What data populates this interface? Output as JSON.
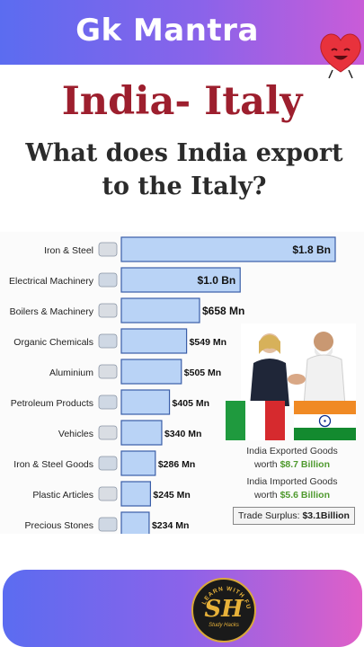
{
  "banner": {
    "title": "Gk Mantra"
  },
  "heading": {
    "title": "India- Italy",
    "subtitle_line1": "What does India export",
    "subtitle_line2": "to the Italy?"
  },
  "chart_data": {
    "type": "bar",
    "orientation": "horizontal",
    "title": "What does India export to the Italy?",
    "categories": [
      "Iron & Steel",
      "Electrical Machinery",
      "Boilers & Machinery",
      "Organic Chemicals",
      "Aluminium",
      "Petroleum Products",
      "Vehicles",
      "Iron & Steel Goods",
      "Plastic Articles",
      "Precious Stones"
    ],
    "values": [
      1800,
      1000,
      658,
      549,
      505,
      405,
      340,
      286,
      245,
      234
    ],
    "unit": "Mn USD",
    "labels": [
      "$1.8 Bn",
      "$1.0 Bn",
      "$658 Mn",
      "$549 Mn",
      "$505 Mn",
      "$405 Mn",
      "$340 Mn",
      "$286 Mn",
      "$245 Mn",
      "$234 Mn"
    ],
    "icons": [
      "steel-beams-icon",
      "robot-arm-icon",
      "boiler-icon",
      "chemical-flasks-icon",
      "aluminium-bars-icon",
      "fuel-can-icon",
      "tractor-icon",
      "gears-icon",
      "no-plastic-icon",
      "diamond-icon"
    ],
    "bar_color": "#b9d3f6",
    "bar_border": "#3a5ea8"
  },
  "summary": {
    "exported_label": "India Exported Goods",
    "exported_prefix": "worth",
    "exported_value": "$8.7 Billion",
    "imported_label": "India Imported Goods",
    "imported_prefix": "worth",
    "imported_value": "$5.6 Billion",
    "trade_label": "Trade Surplus:",
    "trade_value": "$3.1Billion"
  },
  "footer": {
    "logo_initials": "SH",
    "logo_arc_text": "LEARN WITH FUN",
    "logo_caption": "Study Hacks"
  }
}
